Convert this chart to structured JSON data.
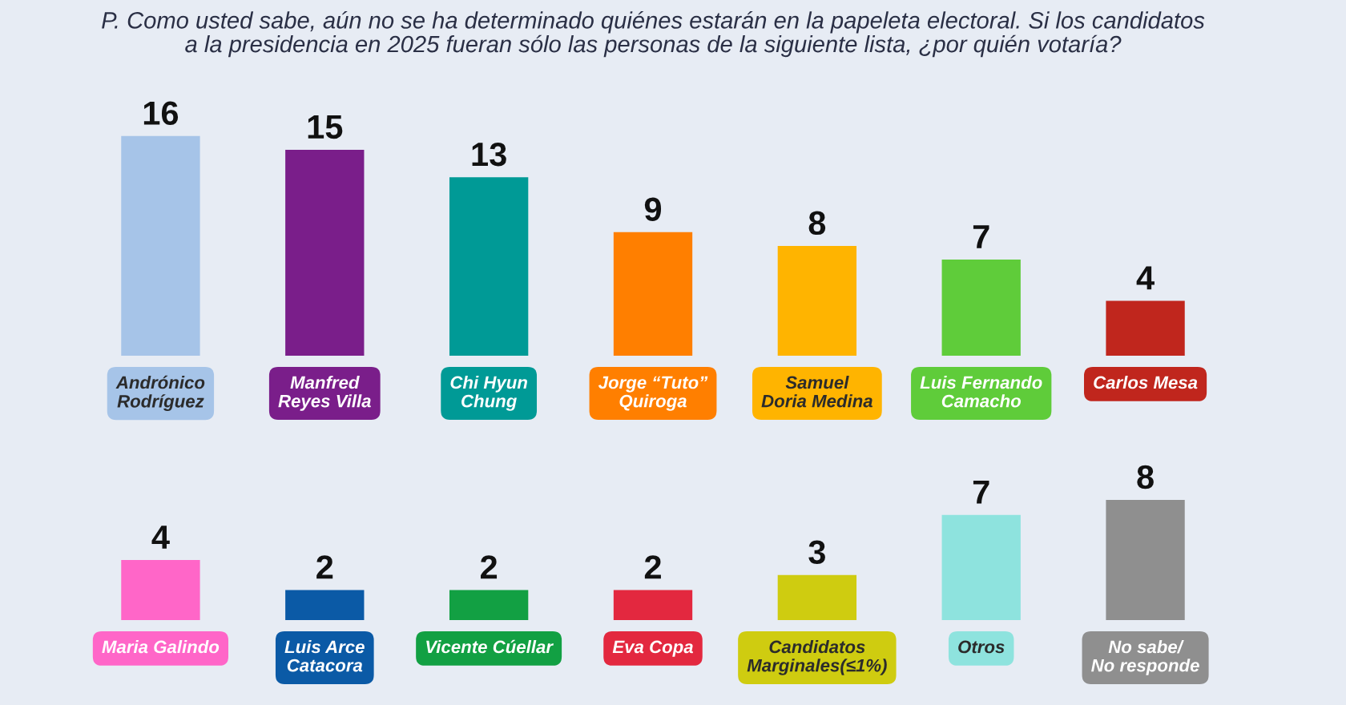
{
  "chart_data": [
    {
      "type": "bar",
      "title": "P. Como usted sabe, aún no se ha determinado quiénes estarán en la papeleta electoral. Si los candidatos\na la presidencia en 2025 fueran sólo las personas de la siguiente lista, ¿por quién votaría?",
      "categories": [
        "Andrónico\nRodríguez",
        "Manfred\nReyes Villa",
        "Chi Hyun\nChung",
        "Jorge “Tuto”\nQuiroga",
        "Samuel\nDoria Medina",
        "Luis Fernando\nCamacho",
        "Carlos Mesa"
      ],
      "values": [
        16,
        15,
        13,
        9,
        8,
        7,
        4
      ],
      "colors": [
        "#a6c4e8",
        "#7a1e8a",
        "#009a96",
        "#ff7f00",
        "#ffb400",
        "#5fcc3a",
        "#c0261d"
      ],
      "data_labels": true,
      "tick_labels": "x"
    },
    {
      "type": "bar",
      "categories": [
        "Maria Galindo",
        "Luis Arce\nCatacora",
        "Vicente Cúellar",
        "Eva Copa",
        "Candidatos\nMarginales(≤1%)",
        "Otros",
        "No sabe/\nNo responde"
      ],
      "values": [
        4,
        2,
        2,
        2,
        3,
        7,
        8
      ],
      "colors": [
        "#ff66c8",
        "#0b5aa6",
        "#12a043",
        "#e3283f",
        "#cfcc10",
        "#8ee3de",
        "#8f8f8f"
      ],
      "data_labels": true,
      "tick_labels": "x"
    }
  ]
}
